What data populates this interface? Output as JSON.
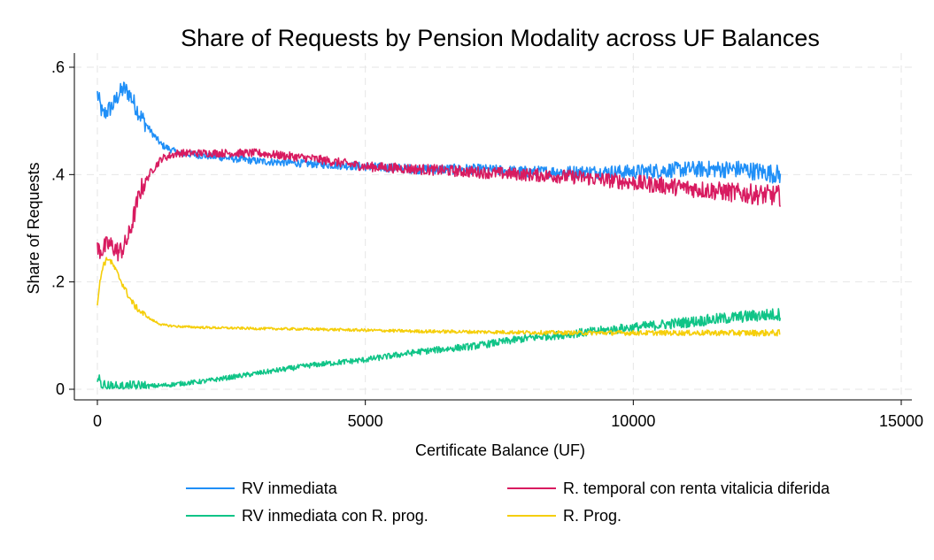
{
  "chart_data": {
    "type": "line",
    "title": "Share of Requests by Pension Modality across UF Balances",
    "xlabel": "Certificate Balance (UF)",
    "ylabel": "Share of Requests",
    "xlim": [
      0,
      15000
    ],
    "ylim": [
      0,
      0.6
    ],
    "x_ticks": [
      0,
      5000,
      10000,
      15000
    ],
    "x_tick_labels": [
      "0",
      "5000",
      "10000",
      "15000"
    ],
    "y_ticks": [
      0,
      0.2,
      0.4,
      0.6
    ],
    "y_tick_labels": [
      "0",
      ".2",
      ".4",
      ".6"
    ],
    "grid": true,
    "legend_position": "bottom",
    "series": [
      {
        "name": "RV inmediata",
        "color": "#1f8ff7",
        "noise": 0.018,
        "x": [
          0,
          100,
          200,
          300,
          400,
          500,
          600,
          700,
          800,
          1000,
          1200,
          1500,
          2000,
          3000,
          4000,
          5000,
          6000,
          7000,
          8000,
          9000,
          10000,
          11000,
          12000,
          12750
        ],
        "values": [
          0.55,
          0.51,
          0.52,
          0.53,
          0.55,
          0.56,
          0.55,
          0.53,
          0.51,
          0.48,
          0.455,
          0.44,
          0.435,
          0.425,
          0.42,
          0.415,
          0.41,
          0.41,
          0.405,
          0.405,
          0.405,
          0.41,
          0.41,
          0.4
        ]
      },
      {
        "name": "R. temporal con renta vitalicia diferida",
        "color": "#d81b60",
        "noise": 0.02,
        "x": [
          0,
          100,
          200,
          300,
          400,
          500,
          600,
          700,
          800,
          1000,
          1200,
          1500,
          2000,
          3000,
          4000,
          5000,
          6000,
          7000,
          8000,
          9000,
          10000,
          11000,
          12000,
          12750
        ],
        "values": [
          0.26,
          0.26,
          0.27,
          0.265,
          0.255,
          0.265,
          0.29,
          0.33,
          0.37,
          0.405,
          0.43,
          0.44,
          0.44,
          0.44,
          0.43,
          0.415,
          0.41,
          0.405,
          0.4,
          0.395,
          0.385,
          0.375,
          0.365,
          0.36
        ]
      },
      {
        "name": "RV inmediata con R. prog.",
        "color": "#10c487",
        "noise": 0.012,
        "x": [
          0,
          100,
          200,
          300,
          400,
          500,
          600,
          700,
          800,
          1000,
          1200,
          1500,
          2000,
          3000,
          4000,
          5000,
          6000,
          7000,
          8000,
          9000,
          10000,
          11000,
          12000,
          12750
        ],
        "values": [
          0.02,
          0.008,
          0.004,
          0.003,
          0.003,
          0.004,
          0.004,
          0.005,
          0.005,
          0.006,
          0.007,
          0.01,
          0.015,
          0.03,
          0.045,
          0.055,
          0.07,
          0.08,
          0.095,
          0.105,
          0.115,
          0.125,
          0.135,
          0.14
        ]
      },
      {
        "name": "R. Prog.",
        "color": "#f5ce0a",
        "noise": 0.006,
        "x": [
          0,
          50,
          100,
          200,
          300,
          400,
          500,
          600,
          700,
          800,
          1000,
          1200,
          1500,
          2000,
          3000,
          4000,
          5000,
          6000,
          7000,
          8000,
          9000,
          10000,
          11000,
          12000,
          12750
        ],
        "values": [
          0.16,
          0.2,
          0.23,
          0.245,
          0.23,
          0.21,
          0.19,
          0.17,
          0.155,
          0.145,
          0.13,
          0.12,
          0.117,
          0.115,
          0.113,
          0.112,
          0.11,
          0.108,
          0.107,
          0.106,
          0.105,
          0.105,
          0.105,
          0.105,
          0.105
        ]
      }
    ]
  }
}
